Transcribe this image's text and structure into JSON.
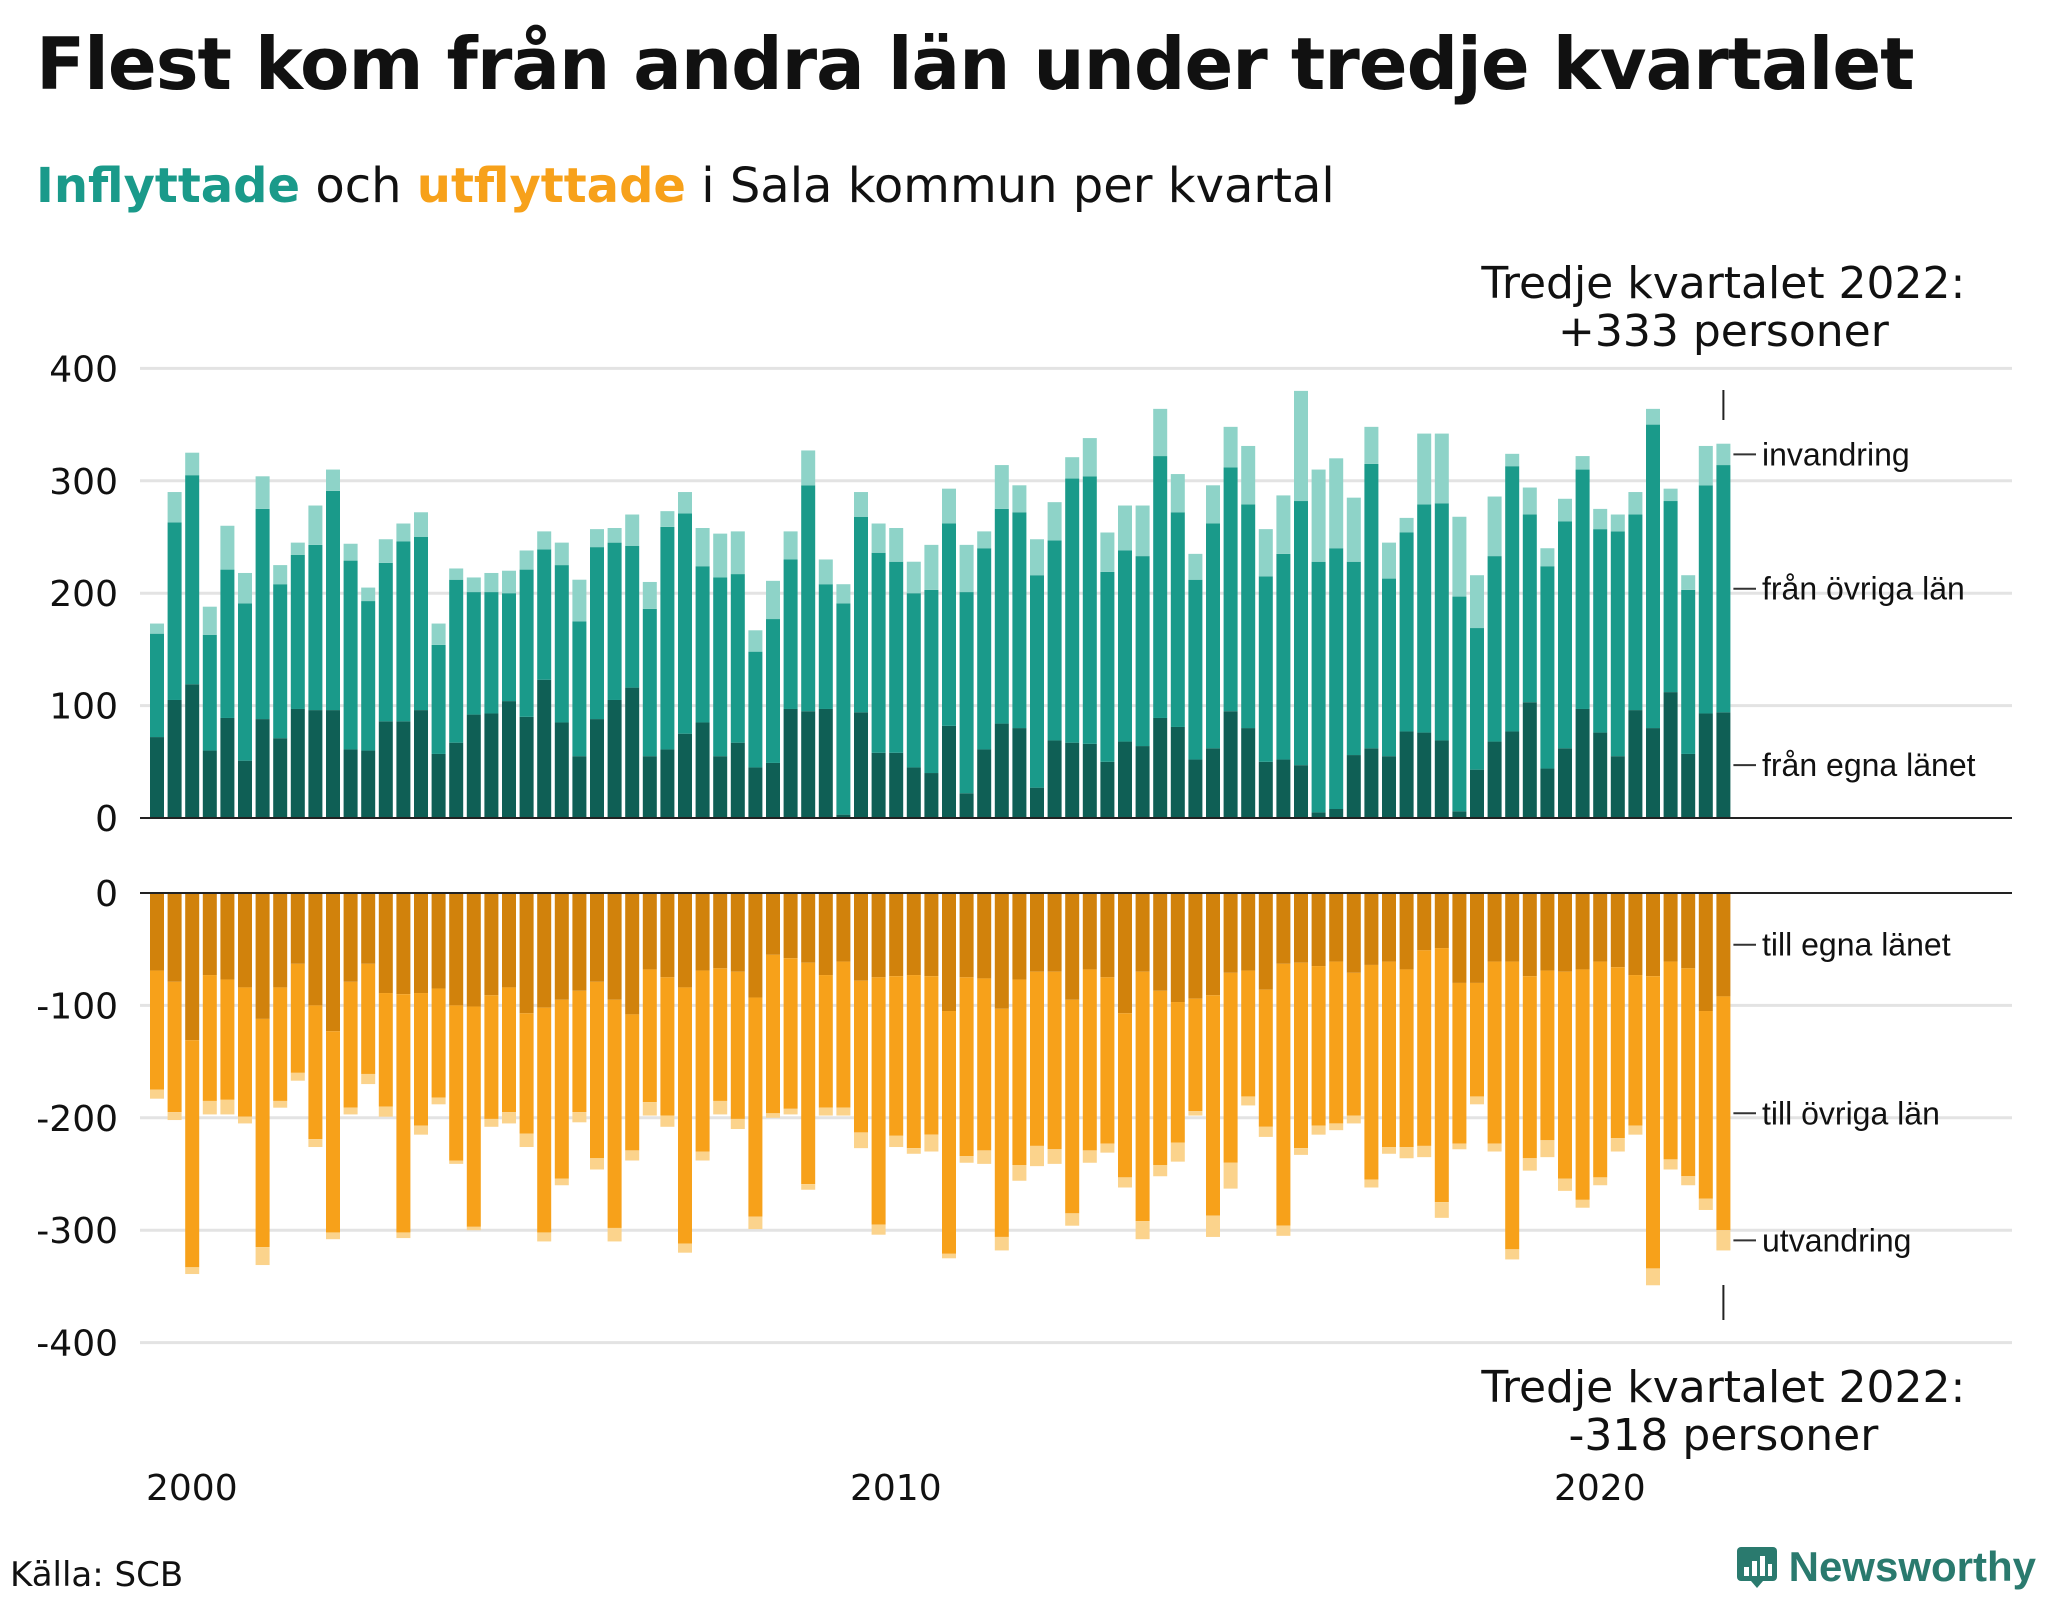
{
  "title": "Flest kom från andra län under tredje kvartalet",
  "subtitle": {
    "in_word": "Inflyttade",
    "middle": " och ",
    "out_word": "utflyttade",
    "rest": " i Sala kommun per kvartal"
  },
  "colors": {
    "in_own_county": "#0f5f55",
    "in_other_counties": "#1a9a8a",
    "in_immigration": "#8ed3c8",
    "out_own_county": "#d1820c",
    "out_other_counties": "#f7a11a",
    "out_emigration": "#fbd38c",
    "grid": "#e3e3e3",
    "axis": "#222222"
  },
  "source": "Källa: SCB",
  "brand": "Newsworthy",
  "chart_data": {
    "type": "bar",
    "stacked": true,
    "x_start": "2000 Q1",
    "x_ticks": [
      "2000",
      "2010",
      "2020"
    ],
    "panels": [
      {
        "name": "inflyttade",
        "ylim": [
          0,
          400
        ],
        "y_ticks": [
          0,
          100,
          200,
          300,
          400
        ],
        "series_labels": [
          "från egna länet",
          "från övriga län",
          "invandring"
        ],
        "annotation": [
          "Tredje kvartalet 2022:",
          "+333 personer"
        ],
        "totals": [
          173,
          290,
          325,
          188,
          260,
          218,
          304,
          225,
          245,
          278,
          310,
          244,
          205,
          248,
          262,
          272,
          173,
          222,
          214,
          218,
          220,
          238,
          255,
          245,
          212,
          257,
          258,
          270,
          210,
          273,
          290,
          258,
          253,
          255,
          167,
          211,
          255,
          327,
          230,
          208,
          290,
          262,
          258,
          228,
          243,
          293,
          243,
          255,
          314,
          296,
          248,
          281,
          321,
          338,
          254,
          278,
          278,
          364,
          306,
          235,
          296,
          348,
          331,
          257,
          287,
          380,
          310,
          320,
          285,
          348,
          245,
          267,
          342,
          342,
          268,
          216,
          286,
          324,
          294,
          240,
          284,
          322,
          275,
          270,
          290,
          364,
          293,
          216,
          331,
          333
        ],
        "other_counties": [
          92,
          158,
          186,
          103,
          132,
          140,
          187,
          137,
          137,
          147,
          195,
          168,
          133,
          141,
          160,
          154,
          97,
          145,
          109,
          108,
          96,
          131,
          116,
          140,
          120,
          153,
          140,
          126,
          131,
          198,
          196,
          139,
          159,
          150,
          103,
          128,
          133,
          201,
          111,
          188,
          174,
          178,
          170,
          155,
          163,
          180,
          179,
          179,
          191,
          192,
          189,
          178,
          235,
          238,
          169,
          170,
          169,
          233,
          191,
          160,
          200,
          217,
          199,
          165,
          183,
          235,
          223,
          232,
          172,
          253,
          158,
          177,
          203,
          211,
          191,
          126,
          165,
          236,
          167,
          180,
          202,
          213,
          181,
          200,
          174,
          270,
          170,
          146,
          203,
          220
        ],
        "immigration": [
          9,
          27,
          20,
          25,
          39,
          27,
          29,
          17,
          11,
          35,
          19,
          15,
          12,
          21,
          16,
          22,
          19,
          10,
          13,
          17,
          20,
          17,
          16,
          20,
          37,
          16,
          13,
          28,
          24,
          14,
          19,
          34,
          39,
          38,
          19,
          34,
          25,
          31,
          22,
          17,
          22,
          26,
          30,
          28,
          40,
          31,
          42,
          15,
          39,
          24,
          32,
          34,
          19,
          34,
          35,
          40,
          45,
          42,
          34,
          23,
          34,
          36,
          52,
          42,
          52,
          98,
          82,
          80,
          57,
          33,
          32,
          13,
          63,
          62,
          71,
          47,
          53,
          11,
          24,
          16,
          20,
          12,
          18,
          15,
          20,
          14,
          11,
          13,
          35,
          19
        ]
      },
      {
        "name": "utflyttade",
        "ylim": [
          -400,
          0
        ],
        "y_ticks": [
          0,
          -100,
          -200,
          -300,
          -400
        ],
        "series_labels": [
          "till egna länet",
          "till övriga län",
          "utvandring"
        ],
        "annotation": [
          "Tredje kvartalet 2022:",
          "-318 personer"
        ],
        "totals": [
          -183,
          -202,
          -339,
          -197,
          -197,
          -205,
          -331,
          -191,
          -167,
          -226,
          -308,
          -197,
          -170,
          -199,
          -307,
          -215,
          -188,
          -241,
          -300,
          -208,
          -205,
          -226,
          -310,
          -260,
          -204,
          -246,
          -310,
          -238,
          -198,
          -208,
          -320,
          -238,
          -197,
          -210,
          -299,
          -200,
          -197,
          -264,
          -198,
          -198,
          -227,
          -304,
          -226,
          -232,
          -230,
          -325,
          -240,
          -241,
          -318,
          -256,
          -243,
          -241,
          -296,
          -240,
          -231,
          -262,
          -308,
          -252,
          -239,
          -198,
          -306,
          -263,
          -189,
          -217,
          -305,
          -233,
          -215,
          -211,
          -205,
          -262,
          -232,
          -236,
          -235,
          -289,
          -228,
          -188,
          -230,
          -326,
          -247,
          -235,
          -265,
          -280,
          -260,
          -230,
          -215,
          -349,
          -246,
          -260,
          -282,
          -318
        ],
        "own_county": [
          -69,
          -79,
          -131,
          -73,
          -77,
          -84,
          -112,
          -84,
          -63,
          -100,
          -123,
          -79,
          -63,
          -89,
          -90,
          -89,
          -85,
          -100,
          -101,
          -91,
          -84,
          -107,
          -102,
          -95,
          -87,
          -79,
          -95,
          -108,
          -68,
          -75,
          -84,
          -69,
          -67,
          -70,
          -93,
          -55,
          -58,
          -62,
          -73,
          -61,
          -78,
          -75,
          -74,
          -73,
          -74,
          -105,
          -75,
          -76,
          -103,
          -77,
          -70,
          -70,
          -95,
          -68,
          -75,
          -107,
          -70,
          -87,
          -97,
          -94,
          -91,
          -71,
          -69,
          -86,
          -63,
          -62,
          -65,
          -61,
          -71,
          -64,
          -61,
          -68,
          -51,
          -49,
          -80,
          -80,
          -61,
          -61,
          -74,
          -69,
          -70,
          -68,
          -61,
          -66,
          -73,
          -74,
          -61,
          -67,
          -105,
          -92
        ],
        "emigration": [
          -8,
          -7,
          -6,
          -12,
          -13,
          -6,
          -16,
          -6,
          -7,
          -7,
          -6,
          -6,
          -9,
          -9,
          -5,
          -8,
          -6,
          -3,
          -3,
          -7,
          -10,
          -12,
          -8,
          -6,
          -9,
          -10,
          -12,
          -9,
          -12,
          -10,
          -8,
          -8,
          -12,
          -9,
          -11,
          -4,
          -5,
          -5,
          -7,
          -7,
          -14,
          -9,
          -10,
          -5,
          -15,
          -4,
          -6,
          -12,
          -12,
          -14,
          -18,
          -13,
          -11,
          -11,
          -8,
          -9,
          -16,
          -10,
          -17,
          -4,
          -19,
          -23,
          -8,
          -9,
          -9,
          -6,
          -8,
          -6,
          -7,
          -7,
          -6,
          -10,
          -10,
          -14,
          -5,
          -7,
          -7,
          -9,
          -11,
          -15,
          -11,
          -7,
          -7,
          -12,
          -8,
          -15,
          -9,
          -8,
          -10,
          -18
        ]
      }
    ]
  }
}
